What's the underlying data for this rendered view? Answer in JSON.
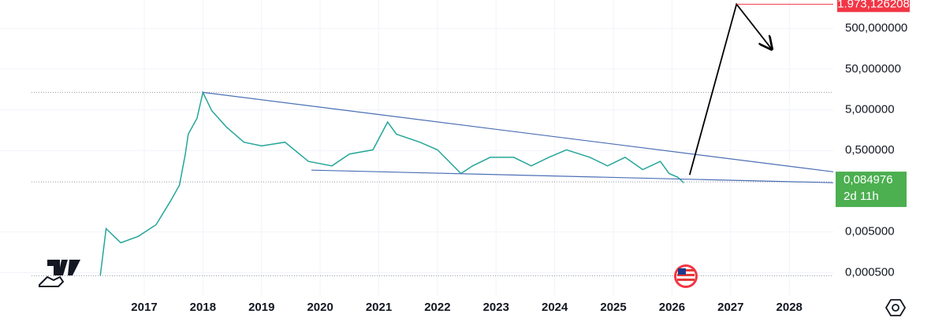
{
  "chart_data": {
    "type": "line",
    "log_scale": true,
    "grid": true,
    "color": "#26a69a",
    "x": [
      2016.25,
      2016.35,
      2016.6,
      2016.9,
      2017.2,
      2017.45,
      2017.6,
      2017.7,
      2017.75,
      2017.9,
      2018.0,
      2018.15,
      2018.4,
      2018.7,
      2019.0,
      2019.4,
      2019.8,
      2020.2,
      2020.5,
      2020.9,
      2021.15,
      2021.3,
      2021.7,
      2022.0,
      2022.4,
      2022.6,
      2022.9,
      2023.3,
      2023.6,
      2023.9,
      2024.2,
      2024.6,
      2024.9,
      2025.2,
      2025.5,
      2025.8,
      2025.95,
      2026.1,
      2026.2
    ],
    "values": [
      0.00042,
      0.006,
      0.0027,
      0.0039,
      0.0075,
      0.029,
      0.07,
      0.41,
      1.26,
      3.1,
      13.4,
      4.8,
      1.9,
      0.8,
      0.65,
      0.8,
      0.27,
      0.21,
      0.41,
      0.52,
      2.5,
      1.26,
      0.8,
      0.52,
      0.136,
      0.21,
      0.34,
      0.34,
      0.21,
      0.34,
      0.52,
      0.34,
      0.21,
      0.34,
      0.17,
      0.27,
      0.136,
      0.11,
      0.0805
    ],
    "xlim": [
      2014.54,
      2028.75
    ],
    "xticks": [
      2017,
      2018,
      2019,
      2020,
      2021,
      2022,
      2023,
      2024,
      2025,
      2026,
      2027,
      2028
    ],
    "ylim": [
      0.00014,
      2500
    ],
    "yticks": [
      {
        "value": 0.0005,
        "label": "0,000500"
      },
      {
        "value": 0.005,
        "label": "0,005000"
      },
      {
        "value": 0.5,
        "label": "0,500000"
      },
      {
        "value": 5,
        "label": "5,000000"
      },
      {
        "value": 50,
        "label": "50,000000"
      },
      {
        "value": 500,
        "label": "500,000000"
      }
    ],
    "price_tag": {
      "value": 0.084976,
      "label": "0,084976",
      "countdown": "2d 11h",
      "color": "#4caf50"
    },
    "target_tag": {
      "value": 1973.126208,
      "label": "1.973,126208",
      "color": "#f23645"
    },
    "trendlines": [
      {
        "x": [
          2018.0,
          2028.75
        ],
        "values": [
          13.4,
          0.15
        ],
        "color": "#4a6fb5"
      },
      {
        "x": [
          2019.85,
          2028.75
        ],
        "values": [
          0.165,
          0.081
        ],
        "color": "#4a6fb5"
      }
    ],
    "projection": {
      "x": [
        2026.3,
        2027.1,
        2027.7
      ],
      "values": [
        0.126,
        1973.126208,
        155
      ],
      "color": "#000000"
    }
  }
}
